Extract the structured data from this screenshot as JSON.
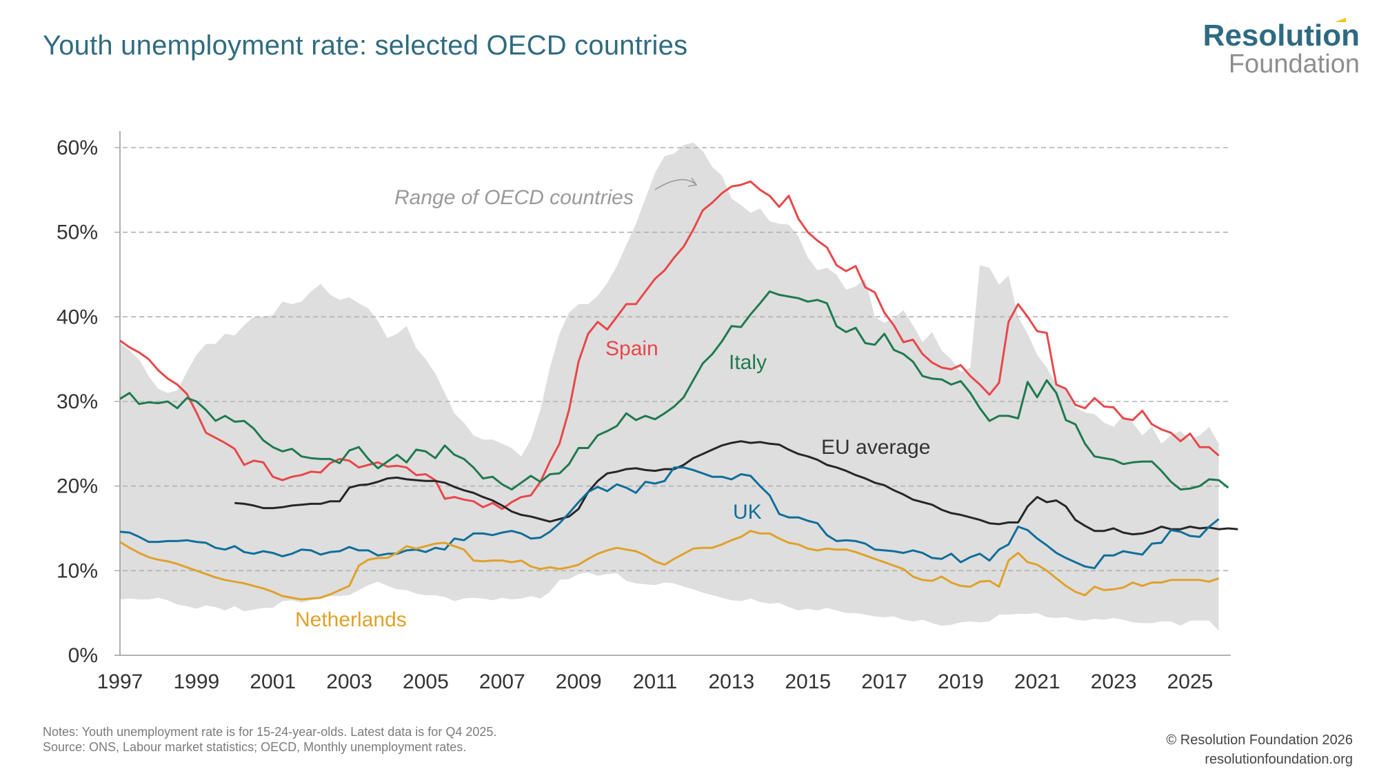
{
  "header": {
    "title": "Youth unemployment rate: selected OECD countries",
    "logo_line1": "Resolution",
    "logo_line2": "Foundation"
  },
  "footer": {
    "notes": "Notes: Youth unemployment rate is for 15-24-year-olds. Latest data is for Q4 2025.",
    "source": "Source: ONS, Labour market statistics; OECD, Monthly unemployment rates.",
    "copyright": "© Resolution Foundation 2026",
    "website": "resolutionfoundation.org"
  },
  "chart_data": {
    "type": "line",
    "title": "Youth unemployment rate: selected OECD countries",
    "xlabel": "",
    "ylabel": "",
    "x_start": 1997.0,
    "x_step": 0.25,
    "xlim": [
      1997,
      2025.75
    ],
    "ylim": [
      0,
      60
    ],
    "y_ticks": [
      0,
      10,
      20,
      30,
      40,
      50,
      60
    ],
    "y_tick_labels": [
      "0%",
      "10%",
      "20%",
      "30%",
      "40%",
      "50%",
      "60%"
    ],
    "x_ticks": [
      1997,
      1999,
      2001,
      2003,
      2005,
      2007,
      2009,
      2011,
      2013,
      2015,
      2017,
      2019,
      2021,
      2023,
      2025
    ],
    "x_tick_labels": [
      "1997",
      "1999",
      "2001",
      "2003",
      "2005",
      "2007",
      "2009",
      "2011",
      "2013",
      "2015",
      "2017",
      "2019",
      "2021",
      "2023",
      "2025"
    ],
    "grid": true,
    "band": {
      "name": "Range of OECD countries",
      "label": "Range of OECD countries",
      "color": "#dedede",
      "upper": [
        37.0,
        36.0,
        35.0,
        33.0,
        31.5,
        31.0,
        31.3,
        33.5,
        35.5,
        36.8,
        36.8,
        38.0,
        37.8,
        39.0,
        40.0,
        40.0,
        40.2,
        41.8,
        41.5,
        41.8,
        43.0,
        43.9,
        42.6,
        42.0,
        42.3,
        41.6,
        41.0,
        39.5,
        37.5,
        38.0,
        38.9,
        36.3,
        35.0,
        33.3,
        31.0,
        28.6,
        27.5,
        26.0,
        25.5,
        25.5,
        25.0,
        24.5,
        23.5,
        25.5,
        29.0,
        34.0,
        38.0,
        40.5,
        41.5,
        41.5,
        42.5,
        44.0,
        46.0,
        48.5,
        51.0,
        54.0,
        57.0,
        59.0,
        59.3,
        60.3,
        60.6,
        59.6,
        57.7,
        56.7,
        54.0,
        53.2,
        52.3,
        52.8,
        51.3,
        51.0,
        50.9,
        49.5,
        47.0,
        45.5,
        45.8,
        45.0,
        43.2,
        43.6,
        44.5,
        40.0,
        39.3,
        39.8,
        40.8,
        39.0,
        37.0,
        38.2,
        36.0,
        35.0,
        33.5,
        34.0,
        46.1,
        45.8,
        43.8,
        44.9,
        40.0,
        38.0,
        35.5,
        34.0,
        32.0,
        31.5,
        29.3,
        28.7,
        28.5,
        27.5,
        27.0,
        28.3,
        27.5,
        26.0,
        27.0,
        25.0,
        26.0,
        26.5,
        25.5,
        26.0,
        27.0,
        25.0
      ],
      "lower": [
        6.6,
        6.7,
        6.6,
        6.6,
        6.8,
        6.5,
        6.0,
        5.8,
        5.5,
        5.9,
        5.7,
        5.3,
        5.8,
        5.2,
        5.4,
        5.6,
        5.6,
        6.4,
        6.5,
        6.2,
        6.5,
        6.8,
        7.0,
        7.0,
        7.1,
        7.7,
        8.3,
        8.7,
        8.2,
        7.8,
        7.7,
        7.3,
        7.1,
        7.1,
        6.9,
        6.4,
        6.7,
        6.8,
        6.7,
        6.5,
        6.8,
        6.6,
        6.7,
        7.0,
        6.7,
        7.5,
        8.9,
        9.0,
        9.6,
        9.8,
        9.4,
        9.6,
        9.7,
        8.8,
        8.5,
        8.4,
        8.3,
        8.6,
        8.5,
        8.1,
        7.8,
        7.4,
        7.1,
        6.8,
        6.5,
        6.4,
        6.7,
        6.3,
        6.1,
        6.2,
        5.7,
        5.3,
        5.5,
        5.3,
        5.6,
        5.3,
        5.0,
        5.0,
        4.8,
        4.6,
        4.5,
        4.6,
        4.2,
        4.0,
        4.2,
        3.8,
        3.5,
        3.6,
        3.9,
        4.0,
        3.9,
        4.0,
        4.8,
        4.8,
        4.9,
        4.9,
        5.0,
        4.5,
        4.4,
        4.5,
        4.2,
        4.1,
        4.3,
        4.2,
        4.4,
        4.2,
        3.9,
        3.8,
        3.8,
        4.0,
        4.0,
        3.5,
        4.1,
        4.1,
        4.1,
        2.9
      ]
    },
    "series": [
      {
        "name": "Spain",
        "label": "Spain",
        "color": "#e8474a",
        "values": [
          37.2,
          36.4,
          35.8,
          35.0,
          33.7,
          32.7,
          32.0,
          30.9,
          28.7,
          26.3,
          25.7,
          25.1,
          24.4,
          22.5,
          23.0,
          22.8,
          21.1,
          20.7,
          21.1,
          21.3,
          21.7,
          21.6,
          22.7,
          23.2,
          23.0,
          22.2,
          22.5,
          22.8,
          22.3,
          22.4,
          22.2,
          21.3,
          21.4,
          20.7,
          18.5,
          18.7,
          18.4,
          18.2,
          17.5,
          18.0,
          17.3,
          18.1,
          18.7,
          18.9,
          20.5,
          22.9,
          25.0,
          29.0,
          34.7,
          38.0,
          39.4,
          38.5,
          40.0,
          41.5,
          41.5,
          43.0,
          44.5,
          45.5,
          47.0,
          48.3,
          50.3,
          52.6,
          53.5,
          54.6,
          55.4,
          55.6,
          56.0,
          55.0,
          54.3,
          53.0,
          54.3,
          51.6,
          50.0,
          49.0,
          48.2,
          46.1,
          45.4,
          46.0,
          43.5,
          42.9,
          40.5,
          39.0,
          37.0,
          37.3,
          35.6,
          34.6,
          34.0,
          33.8,
          34.3,
          33.0,
          32.0,
          30.8,
          32.2,
          39.4,
          41.5,
          40.0,
          38.3,
          38.1,
          32.0,
          31.5,
          29.6,
          29.2,
          30.4,
          29.4,
          29.3,
          28.0,
          27.8,
          28.9,
          27.3,
          26.7,
          26.3,
          25.3,
          26.2,
          24.6,
          24.6,
          23.6
        ]
      },
      {
        "name": "Italy",
        "label": "Italy",
        "color": "#1e7a4f",
        "values": [
          30.3,
          31.0,
          29.7,
          29.9,
          29.8,
          30.0,
          29.2,
          30.4,
          30.0,
          29.0,
          27.7,
          28.3,
          27.6,
          27.7,
          26.8,
          25.4,
          24.6,
          24.1,
          24.4,
          23.5,
          23.3,
          23.2,
          23.2,
          22.7,
          24.2,
          24.6,
          23.2,
          22.1,
          22.9,
          23.7,
          22.8,
          24.3,
          24.1,
          23.3,
          24.8,
          23.7,
          23.2,
          22.2,
          20.9,
          21.1,
          20.2,
          19.6,
          20.4,
          21.2,
          20.5,
          21.4,
          21.5,
          22.6,
          24.5,
          24.5,
          26.0,
          26.5,
          27.1,
          28.6,
          27.8,
          28.3,
          27.9,
          28.6,
          29.4,
          30.5,
          32.5,
          34.5,
          35.6,
          37.1,
          38.9,
          38.8,
          40.3,
          41.6,
          43.0,
          42.6,
          42.4,
          42.2,
          41.8,
          42.0,
          41.6,
          38.9,
          38.2,
          38.7,
          36.9,
          36.7,
          38.0,
          36.1,
          35.6,
          34.7,
          33.0,
          32.7,
          32.6,
          32.0,
          32.4,
          31.0,
          29.2,
          27.7,
          28.3,
          28.3,
          28.0,
          32.3,
          30.5,
          32.5,
          31.0,
          27.8,
          27.3,
          25.0,
          23.5,
          23.3,
          23.1,
          22.6,
          22.8,
          22.9,
          22.9,
          21.8,
          20.5,
          19.6,
          19.7,
          20.0,
          20.8,
          20.7,
          19.8
        ]
      },
      {
        "name": "EU average",
        "label": "EU average",
        "color": "#262626",
        "start_index": 12,
        "values": [
          18.0,
          17.9,
          17.7,
          17.4,
          17.4,
          17.5,
          17.7,
          17.8,
          17.9,
          17.9,
          18.2,
          18.2,
          19.8,
          20.1,
          20.2,
          20.5,
          20.9,
          21.0,
          20.8,
          20.7,
          20.6,
          20.6,
          20.4,
          19.9,
          19.5,
          19.2,
          18.7,
          18.3,
          17.7,
          17.0,
          16.6,
          16.4,
          16.1,
          15.8,
          16.1,
          16.4,
          17.3,
          19.3,
          20.6,
          21.5,
          21.7,
          22.0,
          22.1,
          21.9,
          21.8,
          22.0,
          22.0,
          22.5,
          23.3,
          23.8,
          24.3,
          24.8,
          25.1,
          25.3,
          25.1,
          25.2,
          25.0,
          24.9,
          24.3,
          23.8,
          23.5,
          23.1,
          22.5,
          22.2,
          21.8,
          21.3,
          20.9,
          20.4,
          20.1,
          19.5,
          19.0,
          18.4,
          18.1,
          17.8,
          17.2,
          16.8,
          16.6,
          16.3,
          16.0,
          15.6,
          15.5,
          15.7,
          15.7,
          17.6,
          18.7,
          18.1,
          18.3,
          17.6,
          16.0,
          15.3,
          14.7,
          14.7,
          15.0,
          14.5,
          14.3,
          14.4,
          14.7,
          15.2,
          14.9,
          14.9,
          15.2,
          15.0,
          15.1,
          14.9,
          15.0,
          14.9
        ]
      },
      {
        "name": "UK",
        "label": "UK",
        "color": "#0f6e9a",
        "values": [
          14.6,
          14.5,
          14.0,
          13.4,
          13.4,
          13.5,
          13.5,
          13.6,
          13.4,
          13.3,
          12.7,
          12.5,
          12.9,
          12.2,
          12.0,
          12.3,
          12.1,
          11.7,
          12.0,
          12.5,
          12.4,
          11.9,
          12.2,
          12.3,
          12.8,
          12.4,
          12.4,
          11.8,
          12.0,
          12.0,
          12.4,
          12.5,
          12.2,
          12.7,
          12.5,
          13.8,
          13.6,
          14.4,
          14.4,
          14.2,
          14.5,
          14.7,
          14.4,
          13.8,
          13.9,
          14.6,
          15.6,
          16.8,
          18.1,
          19.3,
          19.9,
          19.4,
          20.2,
          19.8,
          19.2,
          20.5,
          20.3,
          20.6,
          22.2,
          22.2,
          21.9,
          21.5,
          21.1,
          21.1,
          20.8,
          21.4,
          21.2,
          20.0,
          18.9,
          16.7,
          16.3,
          16.3,
          15.9,
          15.6,
          14.2,
          13.5,
          13.6,
          13.5,
          13.2,
          12.5,
          12.4,
          12.3,
          12.1,
          12.4,
          12.1,
          11.5,
          11.4,
          12.0,
          11.0,
          11.6,
          12.0,
          11.2,
          12.5,
          13.1,
          15.2,
          14.8,
          13.8,
          13.0,
          12.1,
          11.5,
          11.0,
          10.5,
          10.3,
          11.8,
          11.8,
          12.3,
          12.1,
          11.9,
          13.2,
          13.3,
          14.8,
          14.6,
          14.1,
          14.0,
          15.2,
          16.1
        ]
      },
      {
        "name": "Netherlands",
        "label": "Netherlands",
        "color": "#e0a12a",
        "values": [
          13.4,
          12.7,
          12.1,
          11.6,
          11.3,
          11.1,
          10.8,
          10.4,
          10.0,
          9.6,
          9.2,
          8.9,
          8.7,
          8.5,
          8.2,
          7.9,
          7.5,
          7.0,
          6.8,
          6.6,
          6.7,
          6.8,
          7.2,
          7.7,
          8.2,
          10.6,
          11.3,
          11.5,
          11.5,
          12.1,
          12.9,
          12.6,
          12.9,
          13.2,
          13.3,
          12.9,
          12.5,
          11.2,
          11.1,
          11.2,
          11.2,
          11.0,
          11.2,
          10.5,
          10.2,
          10.4,
          10.2,
          10.4,
          10.7,
          11.4,
          12.0,
          12.4,
          12.7,
          12.5,
          12.3,
          11.8,
          11.1,
          10.7,
          11.4,
          12.0,
          12.6,
          12.7,
          12.7,
          13.1,
          13.6,
          14.0,
          14.7,
          14.4,
          14.4,
          13.8,
          13.3,
          13.1,
          12.6,
          12.4,
          12.6,
          12.5,
          12.5,
          12.2,
          11.8,
          11.4,
          11.0,
          10.6,
          10.2,
          9.3,
          8.9,
          8.8,
          9.3,
          8.6,
          8.2,
          8.1,
          8.7,
          8.8,
          8.1,
          11.2,
          12.1,
          11.0,
          10.7,
          10.0,
          9.1,
          8.2,
          7.5,
          7.1,
          8.1,
          7.7,
          7.8,
          8.0,
          8.6,
          8.2,
          8.6,
          8.6,
          8.9,
          8.9,
          8.9,
          8.9,
          8.7,
          9.1
        ]
      }
    ],
    "annotations": [
      {
        "text": "Range of OECD countries",
        "style": "italic",
        "color": "#9a9a9a",
        "arrow": true
      },
      {
        "text": "Spain",
        "series": "Spain"
      },
      {
        "text": "Italy",
        "series": "Italy"
      },
      {
        "text": "EU average",
        "series": "EU average"
      },
      {
        "text": "UK",
        "series": "UK"
      },
      {
        "text": "Netherlands",
        "series": "Netherlands"
      }
    ]
  }
}
